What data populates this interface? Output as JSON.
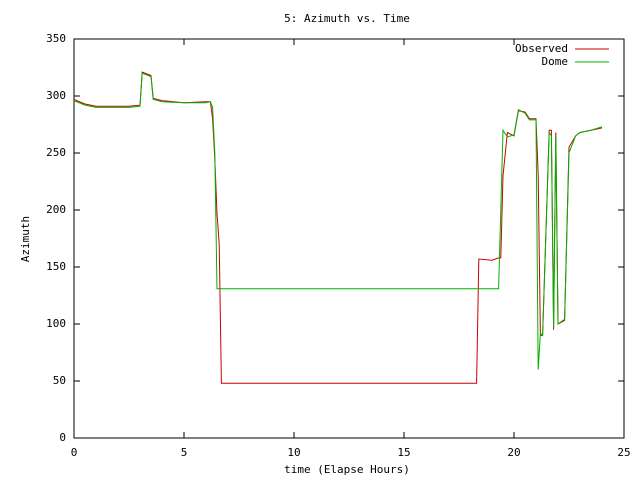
{
  "chart_data": {
    "type": "line",
    "title": "5: Azimuth vs. Time",
    "x_label": "time (Elapse Hours)",
    "y_label": "Azimuth",
    "x": [
      0,
      0.5,
      1,
      2.5,
      3,
      3.1,
      3.5,
      3.6,
      4,
      5,
      6,
      6.2,
      6.3,
      6.4,
      6.5,
      6.6,
      6.7,
      10,
      18.3,
      18.4,
      19,
      19.3,
      19.4,
      19.5,
      19.7,
      20,
      20.2,
      20.5,
      20.7,
      21,
      21.1,
      21.2,
      21.3,
      21.6,
      21.7,
      21.8,
      21.9,
      22,
      22.3,
      22.5,
      22.8,
      23,
      23.5,
      24
    ],
    "series": [
      {
        "name": "Observed",
        "color": "#cc0000",
        "values": [
          297,
          293,
          291,
          291,
          292,
          321,
          318,
          298,
          296,
          294,
          295,
          295,
          280,
          245,
          197,
          170,
          48,
          48,
          48,
          157,
          156,
          158,
          158,
          230,
          268,
          265,
          287,
          286,
          280,
          280,
          230,
          90,
          90,
          270,
          270,
          95,
          268,
          100,
          104,
          255,
          265,
          268,
          270,
          272
        ]
      },
      {
        "name": "Dome",
        "color": "#00b000",
        "values": [
          296,
          292,
          290,
          290,
          291,
          320,
          317,
          297,
          295,
          294,
          294,
          295,
          290,
          250,
          131,
          131,
          131,
          131,
          131,
          131,
          131,
          131,
          200,
          270,
          264,
          266,
          288,
          285,
          279,
          279,
          60,
          92,
          90,
          268,
          265,
          97,
          265,
          100,
          103,
          250,
          265,
          268,
          270,
          273
        ]
      }
    ],
    "xlim": [
      0,
      25
    ],
    "xticks": [
      0,
      5,
      10,
      15,
      20,
      25
    ],
    "ylim": [
      0,
      350
    ],
    "yticks": [
      0,
      50,
      100,
      150,
      200,
      250,
      300,
      350
    ],
    "grid": false,
    "legend": "top-right"
  }
}
